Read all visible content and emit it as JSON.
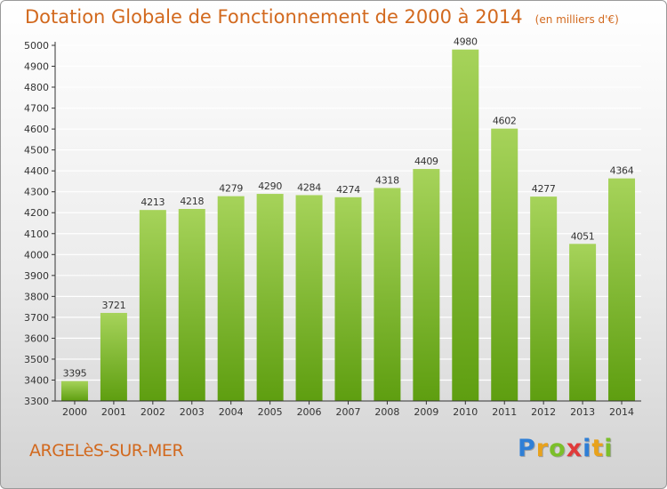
{
  "header": {
    "title": "Dotation Globale de Fonctionnement de 2000 à 2014",
    "unit": "(en milliers d'€)"
  },
  "footer": {
    "commune": "ARGELèS-SUR-MER",
    "logo_letters": [
      {
        "ch": "P",
        "color": "#2f7fd6"
      },
      {
        "ch": "r",
        "color": "#e8a21c"
      },
      {
        "ch": "o",
        "color": "#7bbf2a"
      },
      {
        "ch": "x",
        "color": "#e03a3a"
      },
      {
        "ch": "i",
        "color": "#2f7fd6"
      },
      {
        "ch": "t",
        "color": "#e8a21c"
      },
      {
        "ch": "i",
        "color": "#7bbf2a"
      }
    ]
  },
  "colors": {
    "bar_light": "#a6d35a",
    "bar_dark": "#5e9e10",
    "title": "#d2691e",
    "grid": "#ffffff"
  },
  "chart_data": {
    "type": "bar",
    "categories": [
      "2000",
      "2001",
      "2002",
      "2003",
      "2004",
      "2005",
      "2006",
      "2007",
      "2008",
      "2009",
      "2010",
      "2011",
      "2012",
      "2013",
      "2014"
    ],
    "values": [
      3395,
      3721,
      4213,
      4218,
      4279,
      4290,
      4284,
      4274,
      4318,
      4409,
      4980,
      4602,
      4277,
      4051,
      4364
    ],
    "title": "Dotation Globale de Fonctionnement de 2000 à 2014",
    "ylabel": "(en milliers d'€)",
    "ylim": [
      3300,
      5000
    ],
    "ytick_step": 100,
    "grid": true,
    "data_labels": true
  }
}
